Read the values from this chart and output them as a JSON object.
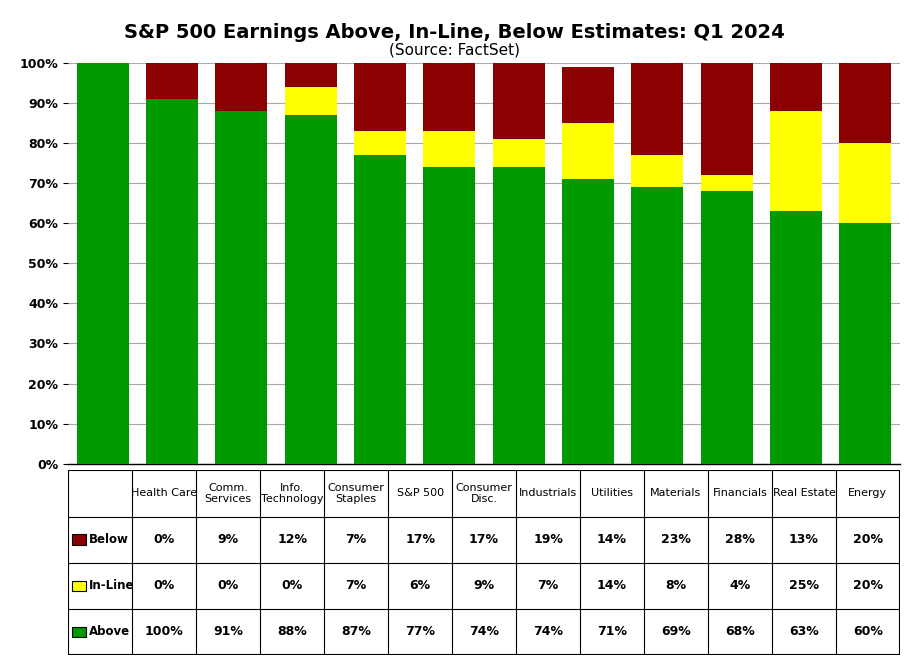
{
  "title": "S&P 500 Earnings Above, In-Line, Below Estimates: Q1 2024",
  "subtitle": "(Source: FactSet)",
  "categories": [
    "Health Care",
    "Comm.\nServices",
    "Info.\nTechnology",
    "Consumer\nStaples",
    "S&P 500",
    "Consumer\nDisc.",
    "Industrials",
    "Utilities",
    "Materials",
    "Financials",
    "Real Estate",
    "Energy"
  ],
  "above": [
    100,
    91,
    88,
    87,
    77,
    74,
    74,
    71,
    69,
    68,
    63,
    60
  ],
  "inline": [
    0,
    0,
    0,
    7,
    6,
    9,
    7,
    14,
    8,
    4,
    25,
    20
  ],
  "below": [
    0,
    9,
    12,
    7,
    17,
    17,
    19,
    14,
    23,
    28,
    13,
    20
  ],
  "above_label": [
    "100%",
    "91%",
    "88%",
    "87%",
    "77%",
    "74%",
    "74%",
    "71%",
    "69%",
    "68%",
    "63%",
    "60%"
  ],
  "inline_label": [
    "0%",
    "0%",
    "0%",
    "7%",
    "6%",
    "9%",
    "7%",
    "14%",
    "8%",
    "4%",
    "25%",
    "20%"
  ],
  "below_label": [
    "0%",
    "9%",
    "12%",
    "7%",
    "17%",
    "17%",
    "19%",
    "14%",
    "23%",
    "28%",
    "13%",
    "20%"
  ],
  "color_above": "#009900",
  "color_inline": "#FFFF00",
  "color_below": "#8B0000",
  "legend_above": "Above",
  "legend_inline": "In-Line",
  "legend_below": "Below",
  "ylim": [
    0,
    100
  ],
  "yticks": [
    0,
    10,
    20,
    30,
    40,
    50,
    60,
    70,
    80,
    90,
    100
  ],
  "ytick_labels": [
    "0%",
    "10%",
    "20%",
    "30%",
    "40%",
    "50%",
    "60%",
    "70%",
    "80%",
    "90%",
    "100%"
  ],
  "background_color": "#FFFFFF",
  "grid_color": "#AAAAAA",
  "title_fontsize": 14,
  "subtitle_fontsize": 11,
  "tick_fontsize": 9,
  "bar_width": 0.75
}
